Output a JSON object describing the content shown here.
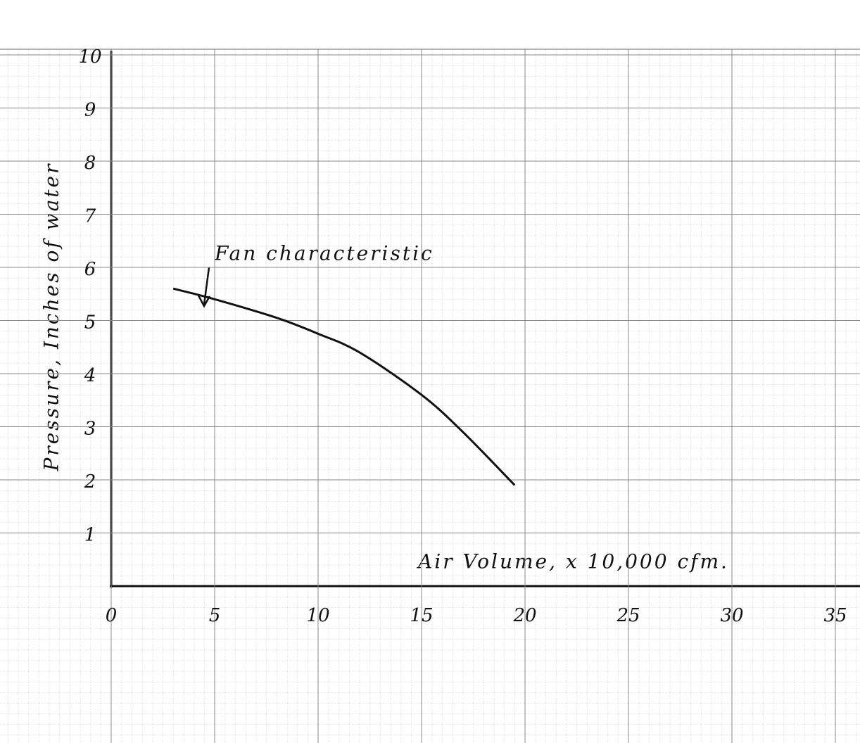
{
  "chart_data": {
    "type": "line",
    "x_label": "Air Volume, x 10,000 cfm.",
    "y_label": "Pressure, Inches of water",
    "annotation": "Fan characteristic",
    "x": [
      3,
      5,
      8,
      10,
      12,
      15,
      17,
      19.5
    ],
    "series": [
      {
        "name": "Fan characteristic",
        "color": "#111111",
        "values": [
          5.6,
          5.4,
          5.05,
          4.75,
          4.4,
          3.6,
          2.9,
          1.9
        ]
      }
    ],
    "xlim": [
      0,
      35
    ],
    "xticks": [
      0,
      5,
      10,
      15,
      20,
      25,
      30,
      35
    ],
    "ylim": [
      0,
      10
    ],
    "yticks": [
      1,
      2,
      3,
      4,
      5,
      6,
      7,
      8,
      9,
      10
    ],
    "grid": true
  }
}
